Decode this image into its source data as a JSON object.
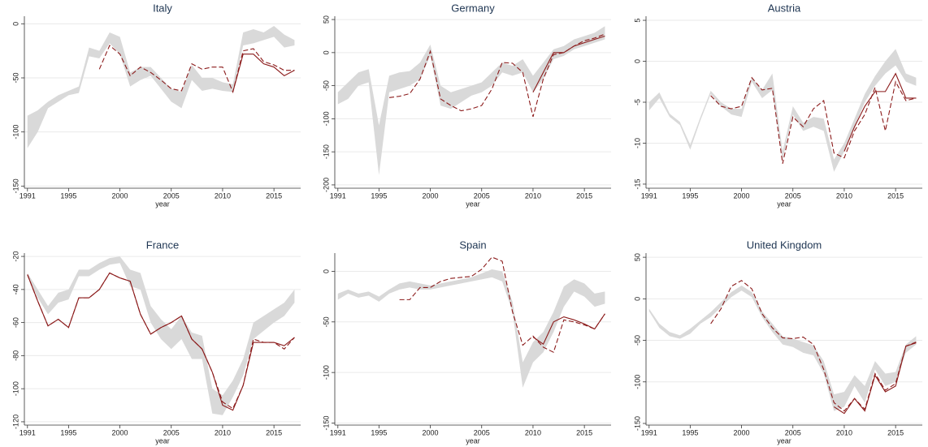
{
  "chart_data": [
    {
      "type": "line",
      "title": "Italy",
      "xlabel": "year",
      "x": [
        1991,
        1992,
        1993,
        1994,
        1995,
        1996,
        1997,
        1998,
        1999,
        2000,
        2001,
        2002,
        2003,
        2004,
        2005,
        2006,
        2007,
        2008,
        2009,
        2010,
        2011,
        2012,
        2013,
        2014,
        2015,
        2016,
        2017
      ],
      "xlim": [
        1990.7,
        2017.6
      ],
      "xticks": [
        1991,
        1995,
        2000,
        2005,
        2010,
        2015
      ],
      "ylim": [
        -152,
        7
      ],
      "yticks": [
        0,
        -50,
        -100,
        -150
      ],
      "grid": true,
      "band": {
        "color": "#d9d9d9",
        "lower": [
          -115,
          -100,
          -78,
          -72,
          -66,
          -64,
          -30,
          -32,
          -18,
          -28,
          -58,
          -52,
          -48,
          -60,
          -72,
          -78,
          -52,
          -62,
          -60,
          -62,
          -63,
          -20,
          -18,
          -15,
          -12,
          -22,
          -20
        ],
        "upper": [
          -85,
          -80,
          -72,
          -66,
          -62,
          -58,
          -22,
          -25,
          -8,
          -12,
          -45,
          -40,
          -40,
          -50,
          -60,
          -63,
          -38,
          -50,
          -50,
          -54,
          -56,
          -8,
          -5,
          -8,
          -2,
          -10,
          -15
        ]
      },
      "series": [
        {
          "color": "#8b1a1a",
          "dash": false,
          "values": [
            null,
            null,
            null,
            null,
            null,
            null,
            null,
            null,
            null,
            null,
            null,
            null,
            null,
            null,
            null,
            null,
            null,
            null,
            null,
            null,
            -63,
            -28,
            -28,
            -37,
            -40,
            -48,
            -43
          ]
        },
        {
          "color": "#8b1a1a",
          "dash": true,
          "values": [
            null,
            null,
            null,
            null,
            null,
            null,
            null,
            -42,
            -20,
            -28,
            -48,
            -40,
            -45,
            -52,
            -60,
            -62,
            -37,
            -42,
            -40,
            -40,
            -63,
            -25,
            -23,
            -35,
            -38,
            -43,
            -43
          ]
        }
      ]
    },
    {
      "type": "line",
      "title": "Germany",
      "xlabel": "year",
      "x": [
        1991,
        1992,
        1993,
        1994,
        1995,
        1996,
        1997,
        1998,
        1999,
        2000,
        2001,
        2002,
        2003,
        2004,
        2005,
        2006,
        2007,
        2008,
        2009,
        2010,
        2011,
        2012,
        2013,
        2014,
        2015,
        2016,
        2017
      ],
      "xlim": [
        1990.7,
        2017.6
      ],
      "xticks": [
        1991,
        1995,
        2000,
        2005,
        2010,
        2015
      ],
      "ylim": [
        -205,
        55
      ],
      "yticks": [
        50,
        0,
        -50,
        -100,
        -150,
        -200
      ],
      "grid": true,
      "band": {
        "color": "#d9d9d9",
        "lower": [
          -78,
          -70,
          -50,
          -45,
          -185,
          -60,
          -55,
          -50,
          -40,
          -5,
          -80,
          -85,
          -75,
          -65,
          -60,
          -50,
          -30,
          -35,
          -30,
          -60,
          -40,
          -10,
          -5,
          5,
          10,
          15,
          20
        ],
        "upper": [
          -60,
          -45,
          -30,
          -25,
          -110,
          -35,
          -30,
          -28,
          -15,
          12,
          -50,
          -60,
          -55,
          -50,
          -45,
          -30,
          -15,
          -20,
          -10,
          -35,
          -15,
          5,
          10,
          20,
          25,
          30,
          40
        ]
      },
      "series": [
        {
          "color": "#8b1a1a",
          "dash": false,
          "values": [
            null,
            null,
            null,
            null,
            null,
            null,
            null,
            null,
            null,
            null,
            null,
            null,
            null,
            null,
            null,
            null,
            null,
            null,
            null,
            -60,
            -30,
            0,
            0,
            10,
            15,
            20,
            25
          ]
        },
        {
          "color": "#8b1a1a",
          "dash": true,
          "values": [
            null,
            null,
            null,
            null,
            null,
            -68,
            -66,
            -62,
            -40,
            2,
            -70,
            -80,
            -88,
            -85,
            -80,
            -55,
            -15,
            -16,
            -30,
            -97,
            -40,
            -3,
            0,
            10,
            18,
            22,
            28
          ]
        }
      ]
    },
    {
      "type": "line",
      "title": "Austria",
      "xlabel": "year",
      "x": [
        1991,
        1992,
        1993,
        1994,
        1995,
        1996,
        1997,
        1998,
        1999,
        2000,
        2001,
        2002,
        2003,
        2004,
        2005,
        2006,
        2007,
        2008,
        2009,
        2010,
        2011,
        2012,
        2013,
        2014,
        2015,
        2016,
        2017
      ],
      "xlim": [
        1990.7,
        2017.6
      ],
      "xticks": [
        1991,
        1995,
        2000,
        2005,
        2010,
        2015
      ],
      "ylim": [
        -15.5,
        5.5
      ],
      "yticks": [
        5,
        0,
        -5,
        -10,
        -15
      ],
      "grid": true,
      "band": {
        "color": "#d9d9d9",
        "lower": [
          -6,
          -4.5,
          -6.8,
          -7.8,
          -10.8,
          -7.2,
          -4,
          -5.5,
          -6.5,
          -6.8,
          -2.5,
          -4.5,
          -3.5,
          -12,
          -6.5,
          -8.5,
          -8,
          -8.5,
          -13.5,
          -11,
          -8,
          -5,
          -3,
          -1.5,
          -0.5,
          -2.5,
          -3
        ],
        "upper": [
          -5,
          -3.8,
          -6.4,
          -7.4,
          -10.2,
          -6.8,
          -3.6,
          -5,
          -5.8,
          -5.8,
          -2,
          -3.5,
          -1.5,
          -11,
          -5.5,
          -7.5,
          -6.8,
          -7,
          -12,
          -10,
          -7,
          -4,
          -1.8,
          0,
          1.5,
          -1.5,
          -2
        ]
      },
      "series": [
        {
          "color": "#8b1a1a",
          "dash": false,
          "values": [
            null,
            null,
            null,
            null,
            null,
            null,
            null,
            null,
            null,
            null,
            null,
            null,
            null,
            null,
            null,
            null,
            null,
            null,
            null,
            -11,
            -8,
            -5.5,
            -3.7,
            -3.7,
            -1.5,
            -4.5,
            -4.5
          ]
        },
        {
          "color": "#8b1a1a",
          "dash": true,
          "values": [
            null,
            null,
            null,
            null,
            null,
            null,
            -4.2,
            -5.5,
            -5.8,
            -5.5,
            -2,
            -3.5,
            -3.3,
            -12.5,
            -6.8,
            -8,
            -5.8,
            -4.8,
            -11.2,
            -11.8,
            -8.5,
            -6.5,
            -3.2,
            -8.5,
            -2.5,
            -4.8,
            -4.5
          ]
        }
      ]
    },
    {
      "type": "line",
      "title": "France",
      "xlabel": "year",
      "x": [
        1991,
        1992,
        1993,
        1994,
        1995,
        1996,
        1997,
        1998,
        1999,
        2000,
        2001,
        2002,
        2003,
        2004,
        2005,
        2006,
        2007,
        2008,
        2009,
        2010,
        2011,
        2012,
        2013,
        2014,
        2015,
        2016,
        2017
      ],
      "xlim": [
        1990.7,
        2017.6
      ],
      "xticks": [
        1991,
        1995,
        2000,
        2005,
        2010,
        2015
      ],
      "ylim": [
        -122,
        -18
      ],
      "yticks": [
        -20,
        -40,
        -60,
        -80,
        -100,
        -120
      ],
      "grid": true,
      "band": {
        "color": "#d9d9d9",
        "lower": [
          -32,
          -45,
          -55,
          -48,
          -46,
          -32,
          -32,
          -28,
          -25,
          -24,
          -38,
          -40,
          -60,
          -70,
          -76,
          -70,
          -82,
          -82,
          -115,
          -116,
          -105,
          -92,
          -70,
          -65,
          -60,
          -56,
          -48
        ],
        "upper": [
          -30,
          -40,
          -50,
          -42,
          -40,
          -28,
          -28,
          -24,
          -21,
          -20,
          -28,
          -30,
          -50,
          -58,
          -64,
          -56,
          -66,
          -68,
          -100,
          -104,
          -95,
          -82,
          -60,
          -56,
          -52,
          -48,
          -40
        ]
      },
      "series": [
        {
          "color": "#8b1a1a",
          "dash": false,
          "values": [
            -31,
            -47,
            -62,
            -58,
            -63,
            -45,
            -45,
            -40,
            -30,
            -33,
            -35,
            -55,
            -67,
            -63,
            -60,
            -56,
            -70,
            -76,
            -90,
            -110,
            -113,
            -98,
            -72,
            -72,
            -72,
            -74,
            -69
          ]
        },
        {
          "color": "#8b1a1a",
          "dash": true,
          "values": [
            -31,
            -47,
            -62,
            -58,
            -63,
            -45,
            -45,
            -40,
            -30,
            -33,
            -35,
            -55,
            -67,
            -63,
            -60,
            -56,
            -70,
            -76,
            -90,
            -108,
            -112,
            -98,
            -70,
            -72,
            -72,
            -76,
            -69
          ]
        }
      ]
    },
    {
      "type": "line",
      "title": "Spain",
      "xlabel": "year",
      "x": [
        1991,
        1992,
        1993,
        1994,
        1995,
        1996,
        1997,
        1998,
        1999,
        2000,
        2001,
        2002,
        2003,
        2004,
        2005,
        2006,
        2007,
        2008,
        2009,
        2010,
        2011,
        2012,
        2013,
        2014,
        2015,
        2016,
        2017
      ],
      "xlim": [
        1990.7,
        2017.6
      ],
      "xticks": [
        1991,
        1995,
        2000,
        2005,
        2010,
        2015
      ],
      "ylim": [
        -152,
        18
      ],
      "yticks": [
        0,
        -50,
        -100,
        -150
      ],
      "grid": true,
      "band": {
        "color": "#d9d9d9",
        "lower": [
          -28,
          -22,
          -26,
          -24,
          -30,
          -22,
          -18,
          -16,
          -18,
          -18,
          -16,
          -14,
          -12,
          -10,
          -8,
          -6,
          -10,
          -40,
          -115,
          -90,
          -80,
          -60,
          -35,
          -20,
          -25,
          -35,
          -32
        ],
        "upper": [
          -22,
          -18,
          -22,
          -20,
          -25,
          -18,
          -12,
          -10,
          -12,
          -14,
          -12,
          -10,
          -8,
          -6,
          -2,
          2,
          0,
          -30,
          -90,
          -70,
          -60,
          -40,
          -15,
          -8,
          -12,
          -22,
          -20
        ]
      },
      "series": [
        {
          "color": "#8b1a1a",
          "dash": false,
          "values": [
            null,
            null,
            null,
            null,
            null,
            null,
            null,
            null,
            null,
            null,
            null,
            null,
            null,
            null,
            null,
            null,
            null,
            null,
            null,
            -65,
            -72,
            -50,
            -45,
            -48,
            -52,
            -57,
            -42
          ]
        },
        {
          "color": "#8b1a1a",
          "dash": true,
          "values": [
            null,
            null,
            null,
            null,
            null,
            null,
            -28,
            -28,
            -16,
            -16,
            -10,
            -7,
            -6,
            -5,
            2,
            14,
            10,
            -40,
            -73,
            -64,
            -75,
            -80,
            -48,
            -50,
            -53,
            -57,
            -42
          ]
        }
      ]
    },
    {
      "type": "line",
      "title": "United Kingdom",
      "xlabel": "year",
      "x": [
        1991,
        1992,
        1993,
        1994,
        1995,
        1996,
        1997,
        1998,
        1999,
        2000,
        2001,
        2002,
        2003,
        2004,
        2005,
        2006,
        2007,
        2008,
        2009,
        2010,
        2011,
        2012,
        2013,
        2014,
        2015,
        2016,
        2017
      ],
      "xlim": [
        1990.7,
        2017.6
      ],
      "xticks": [
        1991,
        1995,
        2000,
        2005,
        2010,
        2015
      ],
      "ylim": [
        -152,
        55
      ],
      "yticks": [
        50,
        0,
        -50,
        -100,
        -150
      ],
      "grid": true,
      "band": {
        "color": "#d9d9d9",
        "lower": [
          -15,
          -35,
          -45,
          -48,
          -42,
          -30,
          -22,
          -10,
          2,
          10,
          2,
          -22,
          -40,
          -55,
          -58,
          -65,
          -68,
          -90,
          -135,
          -130,
          -105,
          -125,
          -85,
          -105,
          -100,
          -65,
          -55
        ],
        "upper": [
          -12,
          -30,
          -40,
          -44,
          -36,
          -26,
          -16,
          -4,
          8,
          16,
          8,
          -15,
          -30,
          -45,
          -48,
          -52,
          -56,
          -75,
          -115,
          -112,
          -92,
          -105,
          -75,
          -90,
          -88,
          -55,
          -45
        ]
      },
      "series": [
        {
          "color": "#8b1a1a",
          "dash": false,
          "values": [
            null,
            null,
            null,
            null,
            null,
            null,
            null,
            null,
            null,
            null,
            null,
            null,
            null,
            null,
            null,
            null,
            null,
            null,
            -130,
            -138,
            -120,
            -135,
            -92,
            -112,
            -105,
            -57,
            -53
          ]
        },
        {
          "color": "#8b1a1a",
          "dash": true,
          "values": [
            null,
            null,
            null,
            null,
            null,
            null,
            -30,
            -12,
            15,
            22,
            12,
            -18,
            -35,
            -47,
            -48,
            -46,
            -55,
            -85,
            -125,
            -135,
            -120,
            -133,
            -90,
            -110,
            -102,
            -57,
            -52
          ]
        }
      ]
    }
  ]
}
